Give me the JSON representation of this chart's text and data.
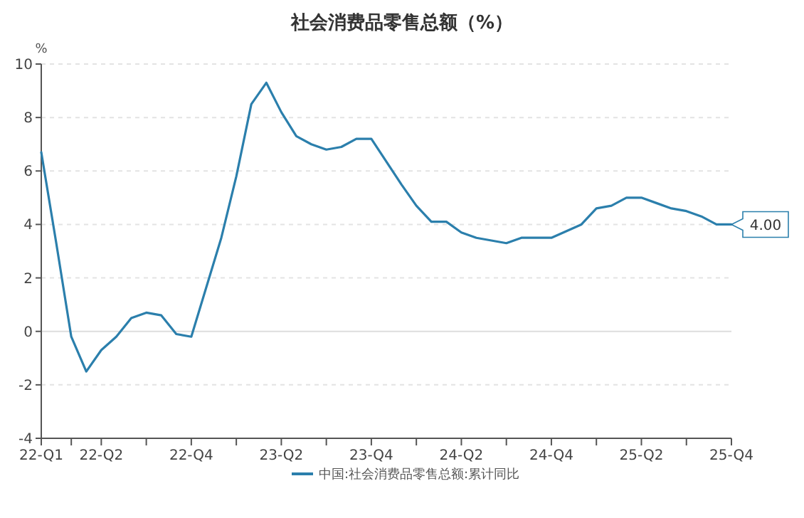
{
  "chart_data": {
    "type": "line",
    "title": "社会消费品零售总额（%）",
    "ylabel": "%",
    "categories": [
      "22-Q1",
      null,
      null,
      null,
      "22-Q2",
      null,
      null,
      null,
      null,
      null,
      "22-Q4",
      null,
      null,
      null,
      null,
      null,
      "23-Q2",
      null,
      null,
      null,
      null,
      null,
      "23-Q4",
      null,
      null,
      null,
      null,
      null,
      "24-Q2",
      null,
      null,
      null,
      null,
      null,
      "24-Q4",
      null,
      null,
      null,
      null,
      null,
      "25-Q2",
      null,
      null,
      null,
      null,
      null,
      "25-Q4"
    ],
    "series": [
      {
        "name": "中国:社会消费品零售总额:累计同比",
        "color": "#2b7fac",
        "values": [
          6.7,
          3.3,
          -0.2,
          -1.5,
          -0.7,
          -0.2,
          0.5,
          0.7,
          0.6,
          -0.1,
          -0.2,
          null,
          3.5,
          5.8,
          8.5,
          9.3,
          8.2,
          7.3,
          7.0,
          6.8,
          6.9,
          7.2,
          7.2,
          null,
          5.5,
          4.7,
          4.1,
          4.1,
          3.7,
          3.5,
          3.4,
          3.3,
          3.5,
          3.5,
          3.5,
          null,
          4.0,
          4.6,
          4.7,
          5.0,
          5.0,
          4.8,
          4.6,
          4.5,
          4.3,
          4.0,
          4.0
        ],
        "value_labels": [
          null,
          null,
          null,
          null,
          null,
          null,
          null,
          null,
          null,
          null,
          null,
          null,
          null,
          null,
          null,
          null,
          null,
          null,
          null,
          null,
          null,
          null,
          null,
          null,
          null,
          null,
          null,
          null,
          null,
          null,
          null,
          null,
          null,
          null,
          null,
          null,
          null,
          null,
          null,
          null,
          null,
          null,
          null,
          null,
          null,
          null,
          "4.00"
        ]
      }
    ],
    "ylim": [
      -4,
      10
    ],
    "yticks": [
      -4,
      -2,
      0,
      2,
      4,
      6,
      8,
      10
    ],
    "grid": "y",
    "legend": "bottom",
    "marker": "none",
    "line_style": "solid"
  }
}
